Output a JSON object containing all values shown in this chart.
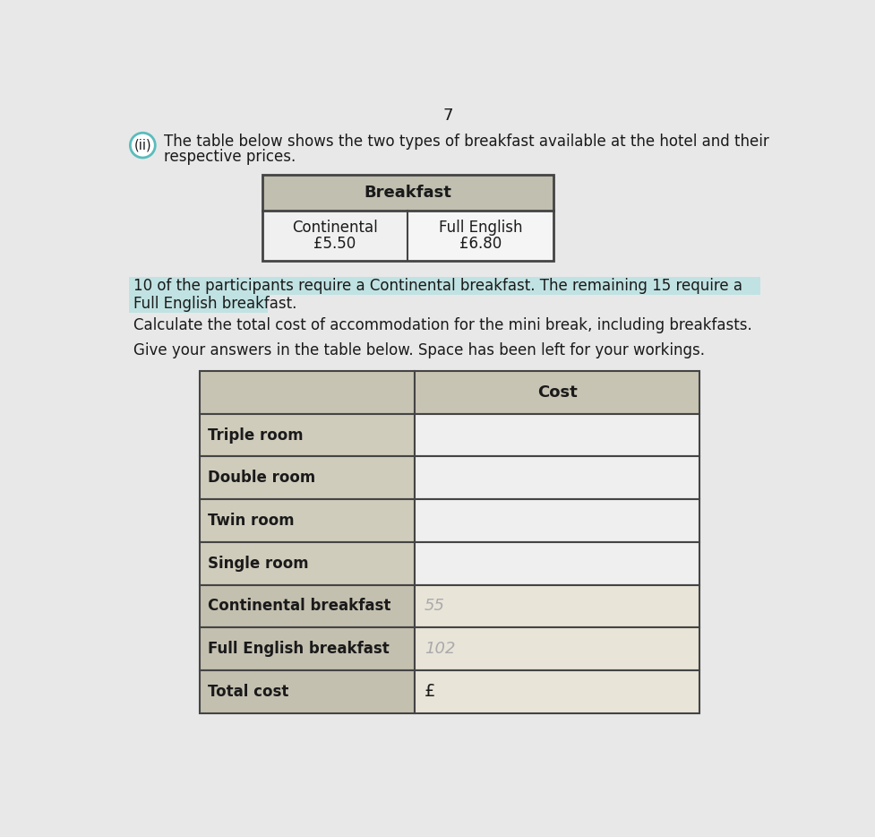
{
  "page_number": "7",
  "question_label": "(ii)",
  "intro_text_line1": "The table below shows the two types of breakfast available at the hotel and their",
  "intro_text_line2": "respective prices.",
  "breakfast_header": "Breakfast",
  "breakfast_col1_header": "Continental",
  "breakfast_col1_price": "£5.50",
  "breakfast_col2_header": "Full English",
  "breakfast_col2_price": "£6.80",
  "para1_line1": "10 of the participants require a Continental breakfast. The remaining 15 require a",
  "para1_line2": "Full English breakfast.",
  "para2": "Calculate the total cost of accommodation for the mini break, including breakfasts.",
  "para3": "Give your answers in the table below. Space has been left for your workings.",
  "cost_table_header": "Cost",
  "cost_table_rows": [
    {
      "label": "Triple room",
      "value": ""
    },
    {
      "label": "Double room",
      "value": ""
    },
    {
      "label": "Twin room",
      "value": ""
    },
    {
      "label": "Single room",
      "value": ""
    },
    {
      "label": "Continental breakfast",
      "value": "55"
    },
    {
      "label": "Full English breakfast",
      "value": "102"
    },
    {
      "label": "Total cost",
      "value": "£"
    }
  ],
  "page_bg": "#e8e8e8",
  "table_header_bg": "#c8c8c8",
  "table_left_cell_bg": "#c8c8c8",
  "table_right_cell_bg": "#e8e8e8",
  "table_border_color": "#444444",
  "highlight_color_line1": "#a8dede",
  "highlight_color_line2": "#a8dede",
  "text_dark": "#1a1a1a",
  "pencil_value_color": "#aaaaaa",
  "circle_color": "#5abcbc"
}
